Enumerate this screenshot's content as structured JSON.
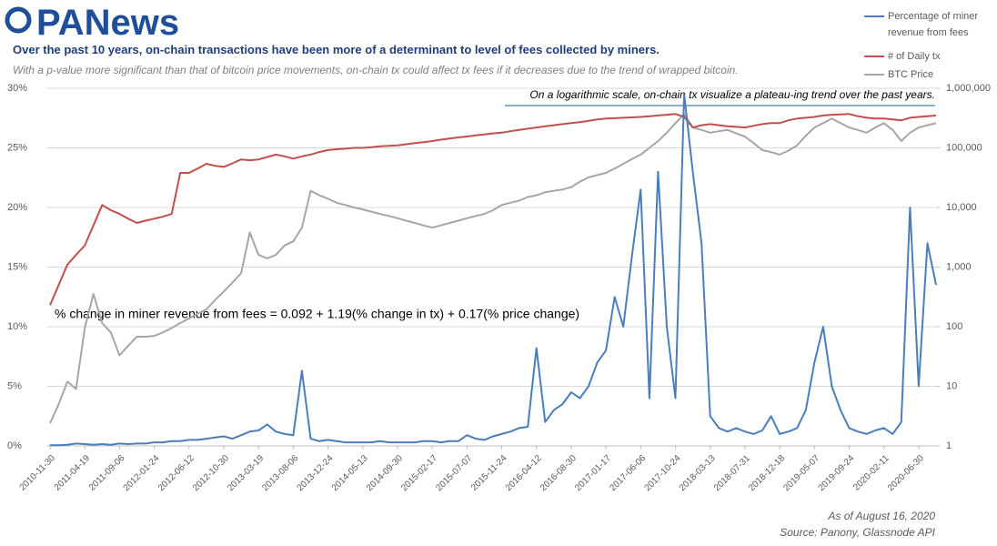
{
  "logo": "PANews",
  "chart_data": {
    "type": "line",
    "title": "Over the past 10 years, on-chain transactions have been more of a determinant to level of fees collected by miners.",
    "subtitle": "With a p-value more significant than that of bitcoin price movements, on-chain tx could affect tx fees if it decreases due to the trend of wrapped bitcoin.",
    "annotations": [
      "On a logarithmic scale, on-chain tx visualize a plateau-ing trend over the past years.",
      "% change in miner revenue from fees = 0.092 + 1.19(% change in tx) + 0.17(% price change)",
      "As of August 16, 2020",
      "Source: Panony, Glassnode API"
    ],
    "categories": [
      "2010-11-30",
      null,
      null,
      null,
      "2011-04-19",
      null,
      null,
      null,
      "2011-09-06",
      null,
      null,
      null,
      "2012-01-24",
      null,
      null,
      null,
      "2012-06-12",
      null,
      null,
      null,
      "2012-10-30",
      null,
      null,
      null,
      "2013-03-19",
      null,
      null,
      null,
      "2013-08-06",
      null,
      null,
      null,
      "2013-12-24",
      null,
      null,
      null,
      "2014-05-13",
      null,
      null,
      null,
      "2014-09-30",
      null,
      null,
      null,
      "2015-02-17",
      null,
      null,
      null,
      "2015-07-07",
      null,
      null,
      null,
      "2015-11-24",
      null,
      null,
      null,
      "2016-04-12",
      null,
      null,
      null,
      "2016-08-30",
      null,
      null,
      null,
      "2017-01-17",
      null,
      null,
      null,
      "2017-06-06",
      null,
      null,
      null,
      "2017-10-24",
      null,
      null,
      null,
      "2018-03-13",
      null,
      null,
      null,
      "2018-07-31",
      null,
      null,
      null,
      "2018-12-18",
      null,
      null,
      null,
      "2019-05-07",
      null,
      null,
      null,
      "2019-09-24",
      null,
      null,
      null,
      "2020-02-11",
      null,
      null,
      null,
      "2020-06-30",
      null,
      null
    ],
    "series": [
      {
        "name": "Percentage of miner revenue from fees",
        "color": "#4a7ebb",
        "axis": "y",
        "values": [
          0.05,
          0.05,
          0.1,
          0.2,
          0.15,
          0.1,
          0.15,
          0.1,
          0.2,
          0.15,
          0.2,
          0.2,
          0.3,
          0.3,
          0.4,
          0.4,
          0.5,
          0.5,
          0.6,
          0.7,
          0.8,
          0.6,
          0.9,
          1.2,
          1.3,
          1.8,
          1.2,
          1.0,
          0.9,
          6.3,
          0.6,
          0.4,
          0.5,
          0.4,
          0.3,
          0.3,
          0.3,
          0.3,
          0.4,
          0.3,
          0.3,
          0.3,
          0.3,
          0.4,
          0.4,
          0.3,
          0.4,
          0.4,
          0.9,
          0.6,
          0.5,
          0.8,
          1.0,
          1.2,
          1.5,
          1.6,
          8.2,
          2.0,
          3.0,
          3.5,
          4.5,
          4.0,
          5.0,
          7.0,
          8.0,
          12.5,
          10.0,
          16.0,
          21.5,
          4.0,
          23.0,
          10.0,
          4.0,
          29.5,
          23.0,
          17.0,
          2.5,
          1.5,
          1.2,
          1.5,
          1.2,
          1.0,
          1.3,
          2.5,
          1.0,
          1.2,
          1.5,
          3.0,
          7.0,
          10.0,
          5.0,
          3.0,
          1.5,
          1.2,
          1.0,
          1.3,
          1.5,
          1.0,
          2.0,
          20.0,
          5.0,
          17.0,
          13.5
        ]
      },
      {
        "name": "# of Daily tx",
        "color": "#c0504d",
        "axis": "y2",
        "values": [
          230,
          500,
          1100,
          1600,
          2300,
          5000,
          11000,
          9000,
          7800,
          6500,
          5500,
          6000,
          6500,
          7000,
          7800,
          38000,
          38000,
          45000,
          54000,
          50000,
          48000,
          55000,
          64000,
          62000,
          64000,
          70000,
          77000,
          72000,
          66000,
          72000,
          77000,
          85000,
          92000,
          95000,
          97000,
          100000,
          100000,
          103000,
          106000,
          108000,
          110000,
          115000,
          120000,
          125000,
          130000,
          137000,
          143000,
          150000,
          155000,
          162000,
          168000,
          175000,
          180000,
          190000,
          200000,
          210000,
          220000,
          230000,
          240000,
          250000,
          260000,
          270000,
          285000,
          300000,
          310000,
          315000,
          320000,
          325000,
          330000,
          340000,
          350000,
          360000,
          370000,
          330000,
          220000,
          240000,
          250000,
          240000,
          230000,
          225000,
          220000,
          235000,
          250000,
          260000,
          260000,
          290000,
          310000,
          320000,
          330000,
          350000,
          360000,
          365000,
          370000,
          340000,
          320000,
          310000,
          310000,
          300000,
          290000,
          320000,
          330000,
          340000,
          350000
        ]
      },
      {
        "name": "BTC Price",
        "color": "#a6a6a6",
        "axis": "y2",
        "values": [
          2.4,
          5,
          12,
          9,
          95,
          355,
          115,
          80,
          33,
          48,
          68,
          68,
          70,
          80,
          95,
          115,
          137,
          165,
          195,
          280,
          390,
          550,
          790,
          3800,
          1600,
          1400,
          1600,
          2300,
          2700,
          4600,
          19000,
          16000,
          14000,
          12000,
          11000,
          10000,
          9300,
          8500,
          7800,
          7200,
          6600,
          6000,
          5500,
          5000,
          4600,
          5000,
          5500,
          6000,
          6600,
          7200,
          7800,
          9000,
          11000,
          12000,
          13000,
          15000,
          16000,
          18000,
          19000,
          20000,
          22000,
          27000,
          32000,
          35000,
          38000,
          45000,
          54000,
          65000,
          77000,
          100000,
          130000,
          180000,
          260000,
          370000,
          220000,
          200000,
          180000,
          190000,
          200000,
          175000,
          155000,
          120000,
          92000,
          85000,
          77000,
          90000,
          110000,
          160000,
          220000,
          260000,
          310000,
          260000,
          220000,
          200000,
          180000,
          220000,
          260000,
          200000,
          130000,
          180000,
          220000,
          240000,
          260000
        ]
      }
    ],
    "ylim": [
      0,
      30
    ],
    "yticks": [
      {
        "value": 0,
        "label": "0%"
      },
      {
        "value": 5,
        "label": "5%"
      },
      {
        "value": 10,
        "label": "10%"
      },
      {
        "value": 15,
        "label": "15%"
      },
      {
        "value": 20,
        "label": "20%"
      },
      {
        "value": 25,
        "label": "25%"
      },
      {
        "value": 30,
        "label": "30%"
      }
    ],
    "y2lim": [
      1,
      1000000
    ],
    "y2ticks": [
      1,
      10,
      100,
      {
        "value": 1000,
        "label": "1,000"
      },
      {
        "value": 10000,
        "label": "10,000"
      },
      {
        "value": 100000,
        "label": "100,000"
      },
      {
        "value": 1000000,
        "label": "1,000,000"
      }
    ],
    "y2log": true,
    "grid": true
  }
}
